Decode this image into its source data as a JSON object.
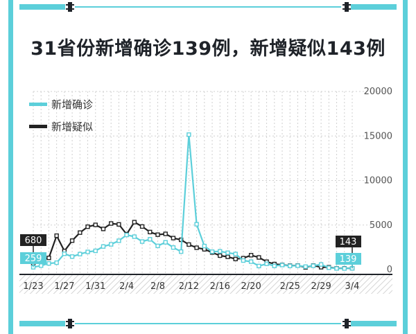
{
  "title": "31省份新增确诊139例，新增疑似143例",
  "colors": {
    "confirmed": "#5ccfda",
    "suspected": "#222222",
    "frame": "#5ccfda"
  },
  "chart_data": {
    "type": "line",
    "ylim": [
      0,
      20000
    ],
    "yticks": [
      0,
      5000,
      10000,
      15000,
      20000
    ],
    "ytick_labels": [
      "0",
      "5000",
      "10000",
      "15000",
      "20000"
    ],
    "grid": true,
    "legend_position": "top-left",
    "x": [
      "1/23",
      "1/24",
      "1/25",
      "1/26",
      "1/27",
      "1/28",
      "1/29",
      "1/30",
      "1/31",
      "2/1",
      "2/2",
      "2/3",
      "2/4",
      "2/5",
      "2/6",
      "2/7",
      "2/8",
      "2/9",
      "2/10",
      "2/11",
      "2/12",
      "2/13",
      "2/14",
      "2/15",
      "2/16",
      "2/17",
      "2/18",
      "2/19",
      "2/20",
      "2/21",
      "2/22",
      "2/23",
      "2/24",
      "2/25",
      "2/26",
      "2/27",
      "2/28",
      "2/29",
      "3/1",
      "3/2",
      "3/3",
      "3/4"
    ],
    "xtick_labels": [
      "1/23",
      "1/27",
      "1/31",
      "2/4",
      "2/8",
      "2/12",
      "2/16",
      "2/20",
      "2/25",
      "2/29",
      "3/4"
    ],
    "series": [
      {
        "name": "新增确诊",
        "color": "#5ccfda",
        "values": [
          259,
          444,
          688,
          769,
          1771,
          1459,
          1737,
          1982,
          2102,
          2590,
          2829,
          3235,
          3887,
          3694,
          3143,
          3399,
          2656,
          3062,
          2478,
          2015,
          15152,
          5090,
          2641,
          2009,
          2048,
          1886,
          1749,
          1011,
          889,
          397,
          648,
          409,
          508,
          406,
          433,
          327,
          427,
          573,
          202,
          125,
          119,
          139
        ],
        "end_label": "139"
      },
      {
        "name": "新增疑似",
        "color": "#222222",
        "values": [
          680,
          1118,
          1309,
          3806,
          2077,
          3248,
          4148,
          4812,
          5019,
          4562,
          5173,
          5072,
          3971,
          5328,
          4833,
          4214,
          3916,
          4008,
          3536,
          3342,
          2807,
          2450,
          2277,
          1918,
          1563,
          1432,
          1185,
          1277,
          1614,
          1361,
          882,
          620,
          530,
          439,
          452,
          248,
          451,
          261,
          259,
          143,
          143,
          143
        ],
        "end_label": "143"
      }
    ],
    "start_labels": [
      "680",
      "259"
    ]
  }
}
